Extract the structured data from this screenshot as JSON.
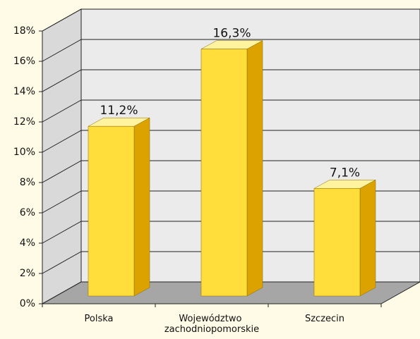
{
  "chart_data": {
    "type": "bar3d",
    "categories": [
      "Polska",
      "Województwo zachodniopomorskie",
      "Szczecin"
    ],
    "values": [
      11.2,
      16.3,
      7.1
    ],
    "value_labels": [
      "11,2%",
      "16,3%",
      "7,1%"
    ],
    "color": "#ffde3b",
    "ylim": [
      0,
      18
    ],
    "yticks": [
      {
        "value": 0,
        "label": "0%"
      },
      {
        "value": 2,
        "label": "2%"
      },
      {
        "value": 4,
        "label": "4%"
      },
      {
        "value": 6,
        "label": "6%"
      },
      {
        "value": 8,
        "label": "8%"
      },
      {
        "value": 10,
        "label": "10%"
      },
      {
        "value": 12,
        "label": "12%"
      },
      {
        "value": 14,
        "label": "14%"
      },
      {
        "value": 16,
        "label": "16%"
      },
      {
        "value": 18,
        "label": "18%"
      }
    ],
    "grid": true
  }
}
